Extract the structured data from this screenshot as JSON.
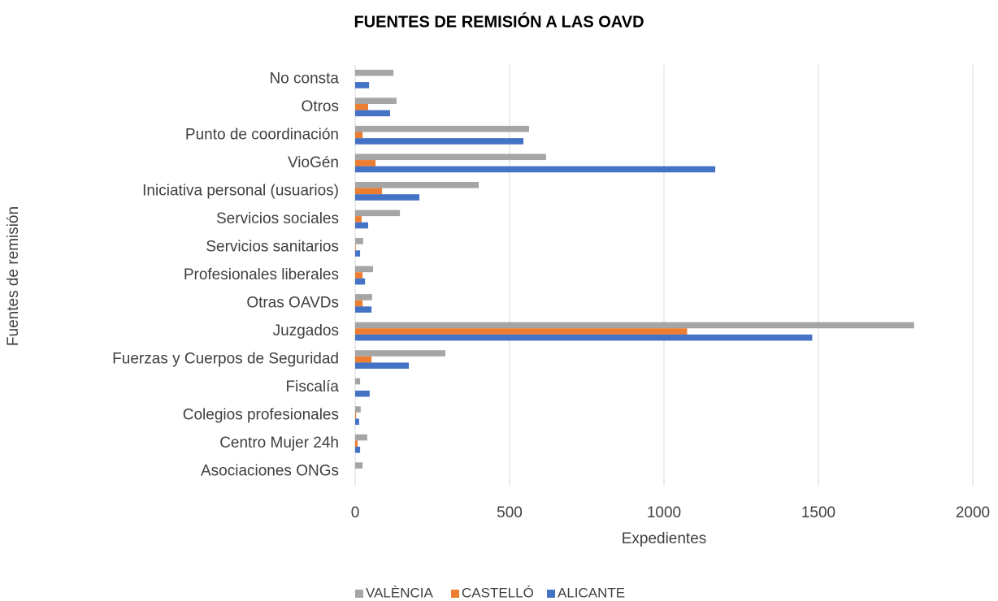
{
  "chart_data": {
    "type": "barh",
    "title": "FUENTES DE REMISIÓN A LAS OAVD",
    "xlabel": "Expedientes",
    "ylabel": "Fuentes de remisión",
    "categories": [
      "No consta",
      "Otros",
      "Punto de coordinación",
      "VioGén",
      "Iniciativa personal (usuarios)",
      "Servicios sociales",
      "Servicios sanitarios",
      "Profesionales liberales",
      "Otras OAVDs",
      "Juzgados",
      "Fuerzas y Cuerpos de Seguridad",
      "Fiscalía",
      "Colegios profesionales",
      "Centro Mujer 24h",
      "Asociaciones ONGs"
    ],
    "series": [
      {
        "name": "VALÈNCIA",
        "color": "#a5a5a5",
        "values": [
          124,
          134,
          563,
          618,
          400,
          145,
          26,
          58,
          55,
          1810,
          292,
          16,
          18,
          39,
          24
        ]
      },
      {
        "name": "CASTELLÓ",
        "color": "#ed7d31",
        "values": [
          0,
          42,
          24,
          66,
          87,
          21,
          2,
          24,
          24,
          1075,
          53,
          0,
          3,
          8,
          0
        ]
      },
      {
        "name": "ALICANTE",
        "color": "#4472c4",
        "values": [
          45,
          113,
          545,
          1166,
          208,
          42,
          16,
          32,
          53,
          1480,
          174,
          47,
          13,
          16,
          0
        ]
      }
    ],
    "xlim": [
      0,
      2000
    ],
    "xticks": [
      0,
      500,
      1000,
      1500,
      2000
    ],
    "grid": true,
    "legend": "bottom"
  }
}
